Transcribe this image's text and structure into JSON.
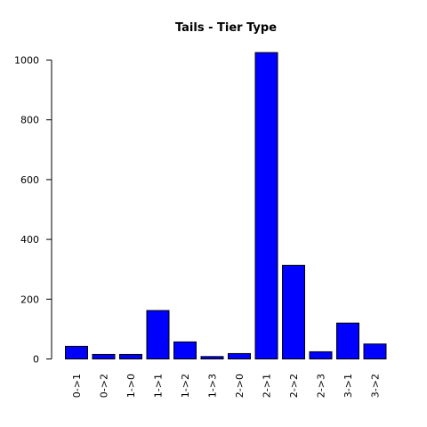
{
  "chart_data": {
    "type": "bar",
    "title": "Tails - Tier Type",
    "xlabel": "",
    "ylabel": "",
    "categories": [
      "0->1",
      "0->2",
      "1->0",
      "1->1",
      "1->2",
      "1->3",
      "2->0",
      "2->1",
      "2->2",
      "2->3",
      "3->1",
      "3->2"
    ],
    "values": [
      42,
      15,
      15,
      162,
      57,
      8,
      18,
      1025,
      313,
      24,
      120,
      50
    ],
    "ylim": [
      0,
      1000
    ],
    "yticks": [
      0,
      200,
      400,
      600,
      800,
      1000
    ],
    "grid": false,
    "legend": "none",
    "bar_color": "#0000FF",
    "bar_outline": "#000000"
  }
}
